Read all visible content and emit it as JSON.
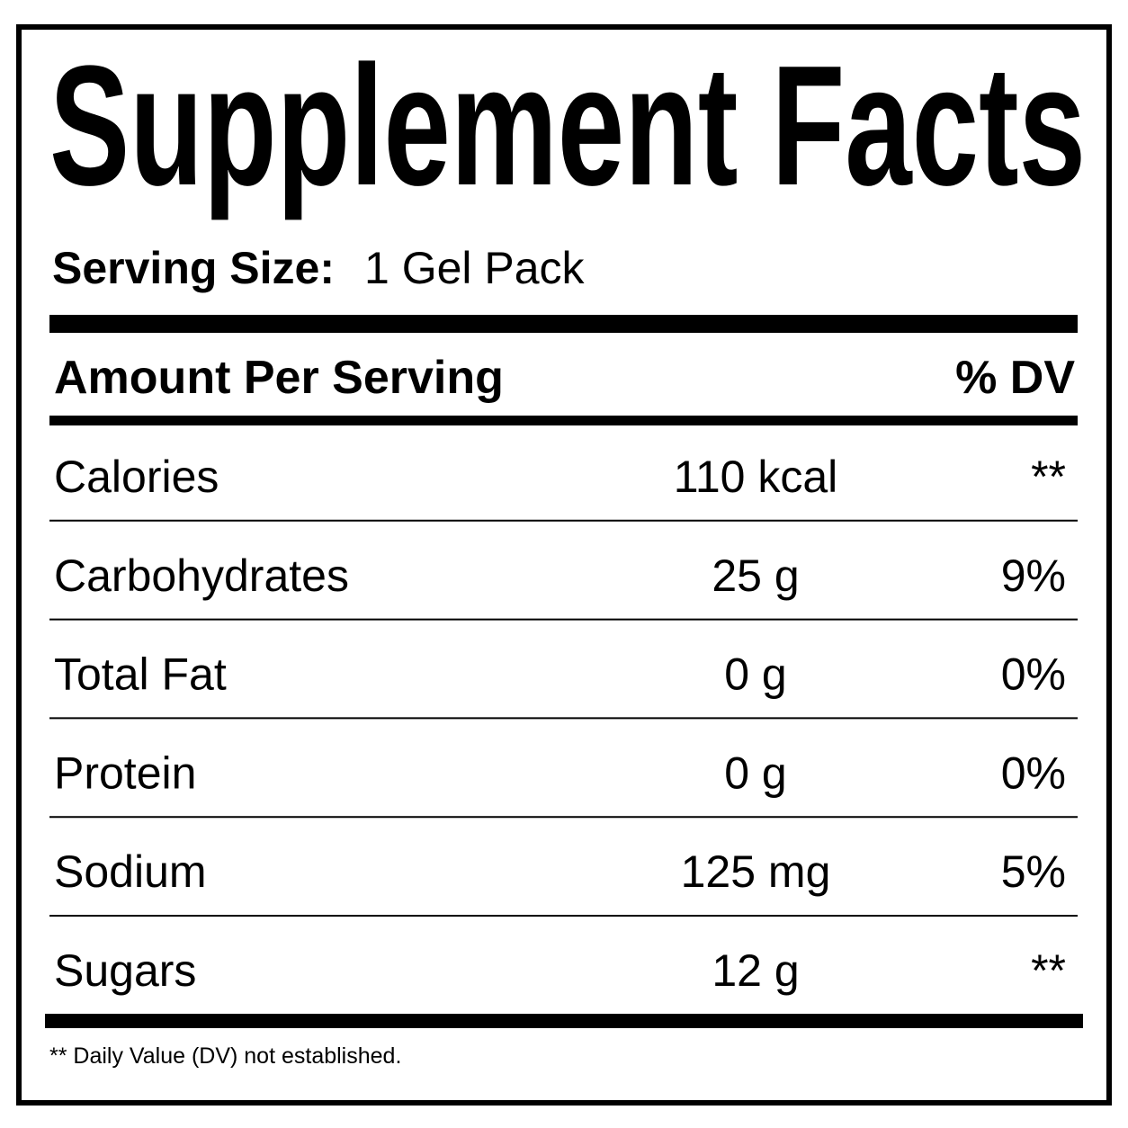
{
  "title": "Supplement Facts",
  "serving_size": {
    "label": "Serving Size:",
    "value": "1 Gel Pack"
  },
  "header": {
    "amount": "Amount Per Serving",
    "dv": "% DV"
  },
  "rows": [
    [
      "Calories",
      "110 kcal",
      "**"
    ],
    [
      "Carbohydrates",
      "25 g",
      "9%"
    ],
    [
      "Total Fat",
      "0 g",
      "0%"
    ],
    [
      "Protein",
      "0 g",
      "0%"
    ],
    [
      "Sodium",
      "125 mg",
      "5%"
    ],
    [
      "Sugars",
      "12 g",
      "**"
    ]
  ],
  "footnote": "** Daily Value (DV) not established."
}
